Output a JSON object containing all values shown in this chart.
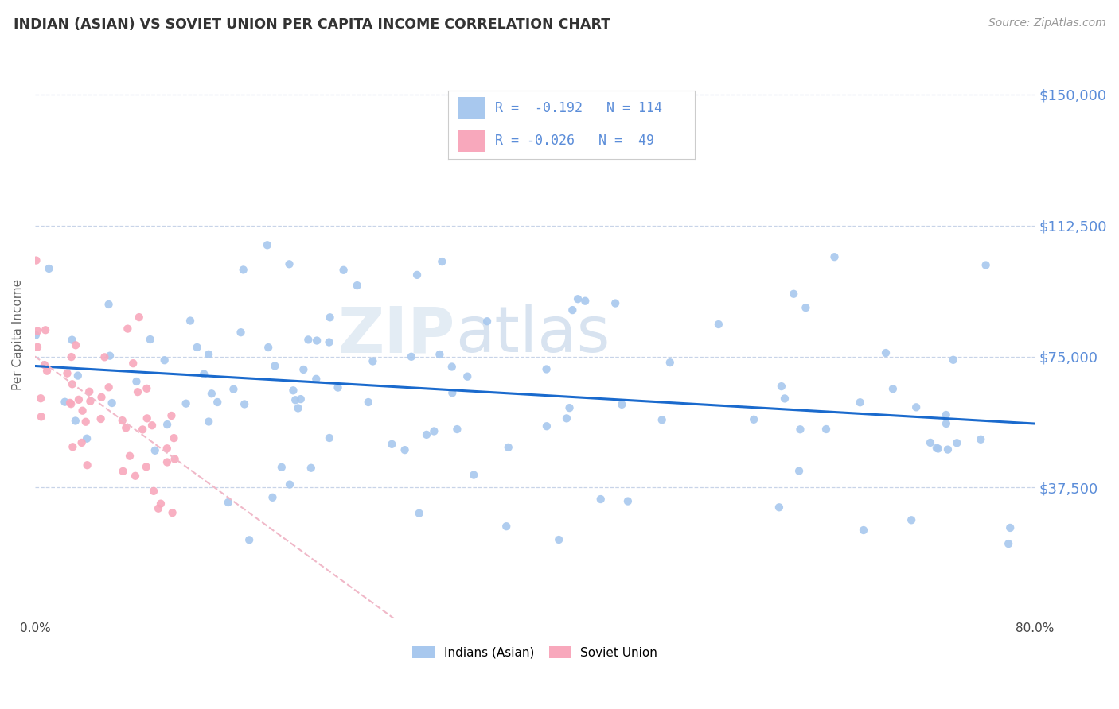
{
  "title": "INDIAN (ASIAN) VS SOVIET UNION PER CAPITA INCOME CORRELATION CHART",
  "source_text": "Source: ZipAtlas.com",
  "ylabel": "Per Capita Income",
  "xlim": [
    0.0,
    0.8
  ],
  "ylim": [
    0,
    162500
  ],
  "yticks": [
    0,
    37500,
    75000,
    112500,
    150000
  ],
  "ytick_labels": [
    "",
    "$37,500",
    "$75,000",
    "$112,500",
    "$150,000"
  ],
  "xticks": [
    0.0,
    0.1,
    0.2,
    0.3,
    0.4,
    0.5,
    0.6,
    0.7,
    0.8
  ],
  "xtick_labels": [
    "0.0%",
    "",
    "",
    "",
    "",
    "",
    "",
    "",
    "80.0%"
  ],
  "background_color": "#ffffff",
  "grid_color": "#c8d4e8",
  "title_color": "#333333",
  "axis_label_color": "#5b8dd9",
  "scatter_blue_color": "#a8c8ee",
  "scatter_pink_color": "#f8a8bc",
  "line_blue_color": "#1a6acd",
  "line_pink_color": "#f0b8c8",
  "legend_label1": "Indians (Asian)",
  "legend_label2": "Soviet Union",
  "watermark_zip": "ZIP",
  "watermark_atlas": "atlas",
  "R1": -0.192,
  "N1": 114,
  "R2": -0.026,
  "N2": 49
}
